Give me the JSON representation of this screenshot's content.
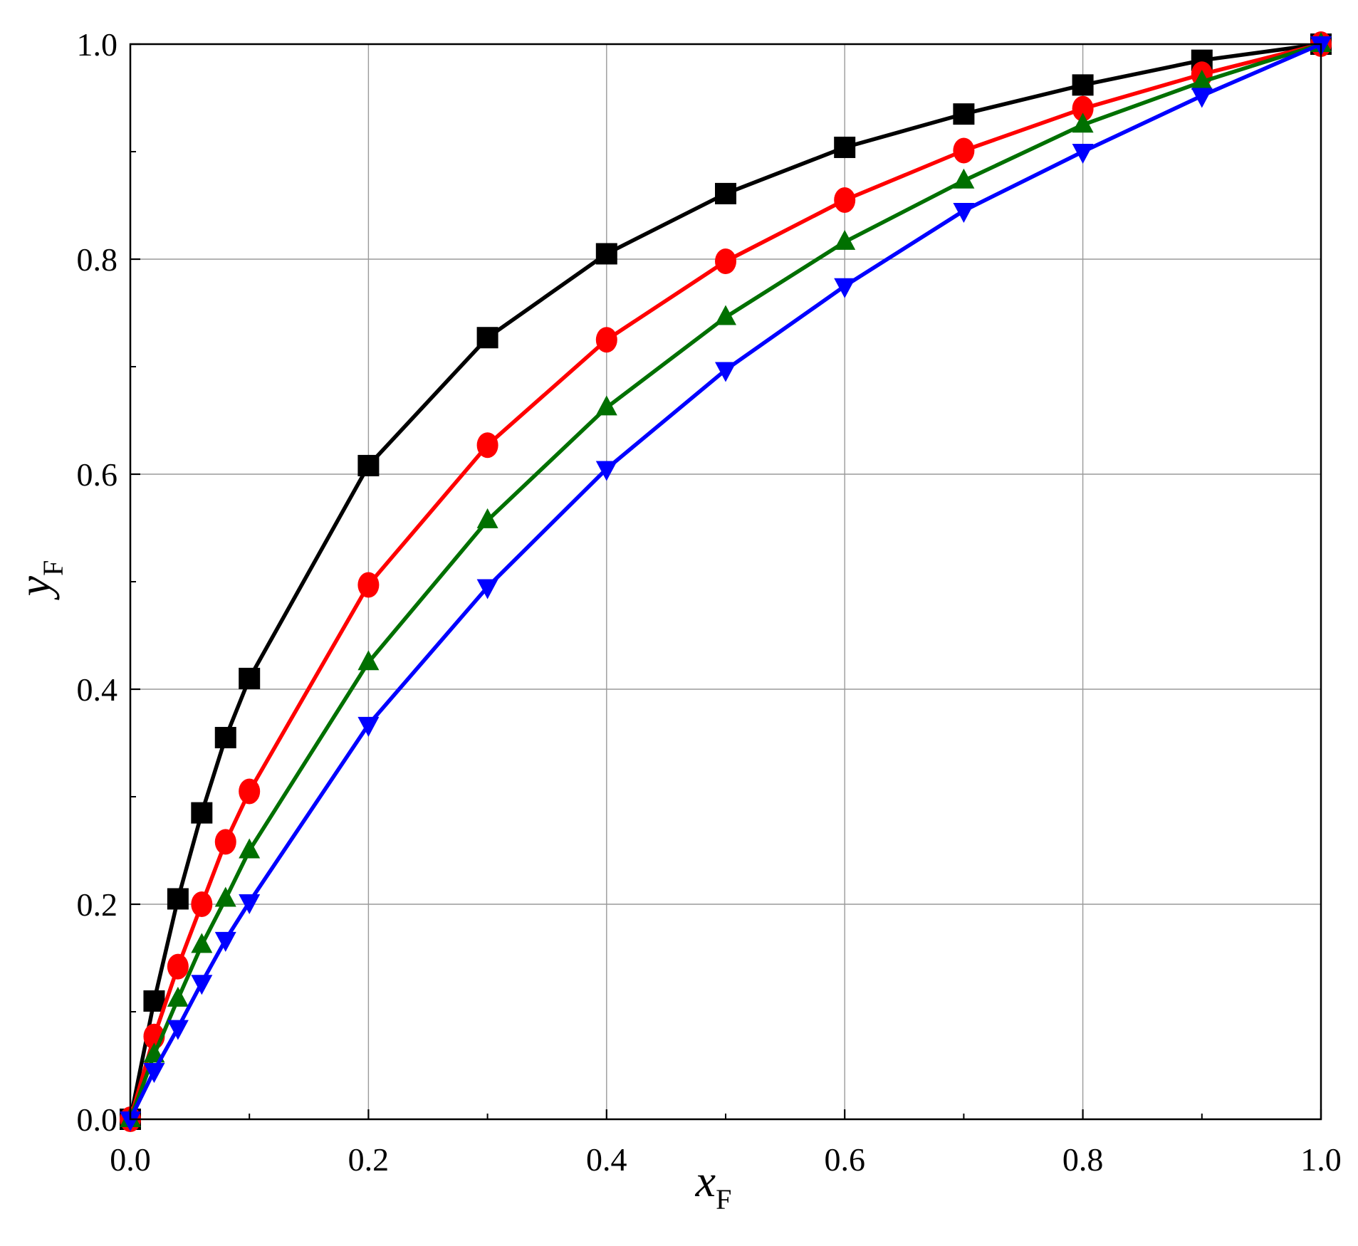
{
  "chart_data": {
    "type": "line",
    "title": "",
    "xlabel": {
      "main": "x",
      "sub": "F"
    },
    "ylabel": {
      "main": "y",
      "sub": "F"
    },
    "xlim": [
      0,
      1
    ],
    "ylim": [
      0,
      1
    ],
    "grid": true,
    "xticks": [
      "0.0",
      "0.2",
      "0.4",
      "0.6",
      "0.8",
      "1.0"
    ],
    "yticks": [
      "0.0",
      "0.2",
      "0.4",
      "0.6",
      "0.8",
      "1.0"
    ],
    "x": [
      0.0,
      0.02,
      0.04,
      0.06,
      0.08,
      0.1,
      0.2,
      0.3,
      0.4,
      0.5,
      0.6,
      0.7,
      0.8,
      0.9,
      1.0
    ],
    "series": [
      {
        "color": "#000000",
        "marker": "square",
        "values": [
          0.0,
          0.11,
          0.205,
          0.285,
          0.355,
          0.41,
          0.608,
          0.727,
          0.805,
          0.861,
          0.904,
          0.935,
          0.962,
          0.985,
          1.0
        ]
      },
      {
        "color": "#ff0000",
        "marker": "circle",
        "values": [
          0.0,
          0.077,
          0.142,
          0.2,
          0.258,
          0.305,
          0.497,
          0.627,
          0.725,
          0.798,
          0.855,
          0.901,
          0.94,
          0.972,
          1.0
        ]
      },
      {
        "color": "#007000",
        "marker": "triangle-up",
        "values": [
          0.0,
          0.06,
          0.112,
          0.162,
          0.205,
          0.25,
          0.425,
          0.557,
          0.662,
          0.746,
          0.816,
          0.873,
          0.925,
          0.965,
          1.0
        ]
      },
      {
        "color": "#0000ff",
        "marker": "triangle-down",
        "values": [
          0.0,
          0.045,
          0.085,
          0.127,
          0.167,
          0.202,
          0.367,
          0.495,
          0.605,
          0.697,
          0.775,
          0.845,
          0.9,
          0.952,
          1.0
        ]
      }
    ]
  }
}
